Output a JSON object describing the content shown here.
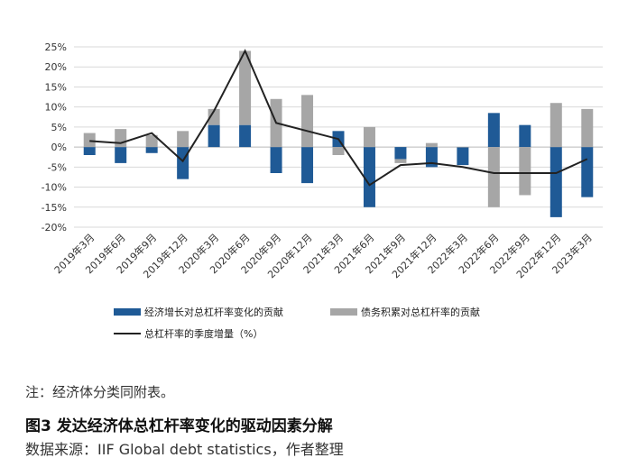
{
  "note": "注：经济体分类同附表。",
  "figure_caption": "图3 发达经济体总杠杆率变化的驱动因素分解",
  "source": "数据来源：IIF Global debt statistics，作者整理",
  "chart_data": {
    "type": "bar",
    "title": "",
    "xlabel": "",
    "ylabel": "",
    "ylim": [
      -20,
      25
    ],
    "yticks": [
      -20,
      -15,
      -10,
      -5,
      0,
      5,
      10,
      15,
      20,
      25
    ],
    "ytick_labels": [
      "-20%",
      "-15%",
      "-10%",
      "-5%",
      "0%",
      "5%",
      "10%",
      "15%",
      "20%",
      "25%"
    ],
    "categories": [
      "2019年3月",
      "2019年6月",
      "2019年9月",
      "2019年12月",
      "2020年3月",
      "2020年6月",
      "2020年9月",
      "2020年12月",
      "2021年3月",
      "2021年6月",
      "2021年9月",
      "2021年12月",
      "2022年3月",
      "2022年6月",
      "2022年9月",
      "2022年12月",
      "2023年3月"
    ],
    "stacked": true,
    "grid": true,
    "legend_position": "bottom",
    "series": [
      {
        "name": "经济增长对总杠杆率变化的贡献",
        "kind": "bar",
        "color": "#1f5a96",
        "values": [
          -2,
          -4,
          -1.5,
          -8,
          5.5,
          5.5,
          -6.5,
          -9,
          4,
          -15,
          -3,
          -5,
          -4.5,
          8.5,
          5.5,
          -17.5,
          -12.5
        ]
      },
      {
        "name": "债务积累对总杠杆率的贡献",
        "kind": "bar",
        "color": "#a6a6a6",
        "values": [
          3.5,
          4.5,
          3,
          4,
          4,
          18.5,
          12,
          13,
          -2,
          5,
          -1,
          1,
          0,
          -15,
          -12,
          11,
          9.5
        ]
      },
      {
        "name": "总杠杆率的季度增量（%）",
        "kind": "line",
        "color": "#222222",
        "values": [
          1.5,
          1,
          3.5,
          -3.5,
          9,
          24,
          6,
          4,
          2,
          -9.5,
          -4.5,
          -4,
          -5,
          -6.5,
          -6.5,
          -6.5,
          -3
        ]
      }
    ]
  }
}
